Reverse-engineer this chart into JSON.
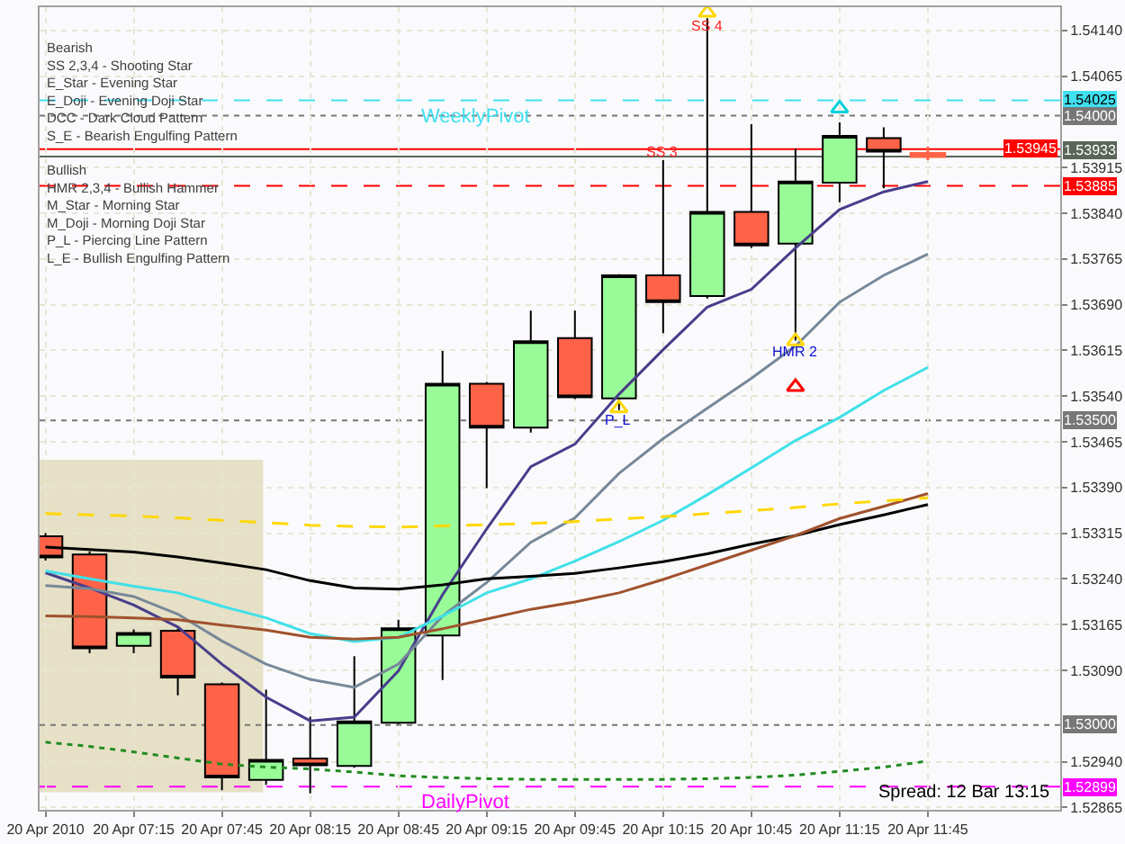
{
  "chart_data": {
    "type": "candlestick",
    "x": [
      "2010-04-20T06:45",
      "2010-04-20T07:00",
      "2010-04-20T07:15",
      "2010-04-20T07:30",
      "2010-04-20T07:45",
      "2010-04-20T08:00",
      "2010-04-20T08:15",
      "2010-04-20T08:30",
      "2010-04-20T08:45",
      "2010-04-20T09:00",
      "2010-04-20T09:15",
      "2010-04-20T09:30",
      "2010-04-20T09:45",
      "2010-04-20T10:00",
      "2010-04-20T10:15",
      "2010-04-20T10:30",
      "2010-04-20T10:45",
      "2010-04-20T11:00",
      "2010-04-20T11:15",
      "2010-04-20T11:30",
      "2010-04-20T11:45"
    ],
    "ohlc": [
      [
        1.5331,
        1.53315,
        1.5327,
        1.53275
      ],
      [
        1.5328,
        1.53285,
        1.53118,
        1.53126
      ],
      [
        1.5313,
        1.53157,
        1.53118,
        1.53151
      ],
      [
        1.53155,
        1.53158,
        1.53049,
        1.53078
      ],
      [
        1.53067,
        1.5307,
        1.52893,
        1.52914
      ],
      [
        1.5291,
        1.53058,
        1.52902,
        1.52943
      ],
      [
        1.52945,
        1.53014,
        1.52888,
        1.52934
      ],
      [
        1.52933,
        1.53113,
        1.5293,
        1.53006
      ],
      [
        1.53004,
        1.53173,
        1.53001,
        1.53159
      ],
      [
        1.53147,
        1.53614,
        1.53074,
        1.5356
      ],
      [
        1.5356,
        1.53563,
        1.53389,
        1.53488
      ],
      [
        1.53488,
        1.5368,
        1.5348,
        1.5363
      ],
      [
        1.53635,
        1.5368,
        1.53535,
        1.53538
      ],
      [
        1.53536,
        1.5374,
        1.53517,
        1.53738
      ],
      [
        1.53738,
        1.53927,
        1.53643,
        1.53694
      ],
      [
        1.53704,
        1.5416,
        1.537,
        1.53842
      ],
      [
        1.53842,
        1.53986,
        1.53783,
        1.53787
      ],
      [
        1.5379,
        1.53946,
        1.53631,
        1.53892
      ],
      [
        1.5389,
        1.53989,
        1.53858,
        1.53967
      ],
      [
        1.53963,
        1.53981,
        1.53881,
        1.53941
      ],
      [
        1.53938,
        1.53949,
        1.53927,
        1.53933
      ]
    ],
    "colors": [
      "#ff6347",
      "#ff6347",
      "#98fb98",
      "#ff6347",
      "#ff6347",
      "#98fb98",
      "#ff6347",
      "#98fb98",
      "#98fb98",
      "#98fb98",
      "#ff6347",
      "#98fb98",
      "#ff6347",
      "#98fb98",
      "#ff6347",
      "#98fb98",
      "#ff6347",
      "#98fb98",
      "#98fb98",
      "#ff6347",
      "#ff6347"
    ],
    "series": [
      {
        "type": "line",
        "color": "#483d8b",
        "values": [
          1.5325,
          1.53225,
          1.53197,
          1.53161,
          1.531,
          1.53046,
          1.53007,
          1.53013,
          1.53089,
          1.53214,
          1.53322,
          1.53424,
          1.53461,
          1.53543,
          1.53616,
          1.53686,
          1.53715,
          1.53783,
          1.53846,
          1.53875,
          1.53892
        ]
      },
      {
        "type": "line",
        "color": "#778899",
        "values": [
          1.53229,
          1.53224,
          1.53211,
          1.53182,
          1.53138,
          1.531,
          1.53075,
          1.53062,
          1.531,
          1.53179,
          1.53234,
          1.533,
          1.5334,
          1.53413,
          1.5347,
          1.5352,
          1.53569,
          1.53622,
          1.53694,
          1.53738,
          1.53773
        ]
      },
      {
        "type": "line",
        "color": "#40e0e8",
        "values": [
          1.53253,
          1.5324,
          1.53228,
          1.53217,
          1.53195,
          1.53176,
          1.5315,
          1.53137,
          1.53144,
          1.53179,
          1.53217,
          1.5324,
          1.53269,
          1.53301,
          1.53336,
          1.53378,
          1.53422,
          1.53467,
          1.53505,
          1.53549,
          1.53587
        ]
      },
      {
        "type": "line",
        "color": "#000000",
        "values": [
          1.53292,
          1.53288,
          1.53284,
          1.53276,
          1.53266,
          1.53255,
          1.53237,
          1.53225,
          1.53223,
          1.5323,
          1.5324,
          1.53244,
          1.53249,
          1.53258,
          1.53268,
          1.53281,
          1.53297,
          1.53311,
          1.53329,
          1.53345,
          1.53362
        ]
      },
      {
        "type": "line",
        "color": "#a0522d",
        "values": [
          1.53179,
          1.53178,
          1.53176,
          1.53173,
          1.53164,
          1.53156,
          1.53144,
          1.53141,
          1.53144,
          1.53158,
          1.53174,
          1.5319,
          1.53202,
          1.53217,
          1.53239,
          1.53263,
          1.53287,
          1.53311,
          1.53339,
          1.53359,
          1.5338
        ]
      },
      {
        "type": "line",
        "color": "#ffd700",
        "line_style": "dashed",
        "values": [
          1.53347,
          1.53345,
          1.53343,
          1.5334,
          1.53336,
          1.53332,
          1.53328,
          1.53326,
          1.53325,
          1.53327,
          1.53329,
          1.53331,
          1.53334,
          1.53338,
          1.53342,
          1.53347,
          1.53352,
          1.53357,
          1.53363,
          1.53368,
          1.53373
        ]
      },
      {
        "type": "line",
        "color": "#228b22",
        "line_style": "dotted",
        "values": [
          1.52972,
          1.52965,
          1.52956,
          1.52946,
          1.52936,
          1.52931,
          1.52928,
          1.52923,
          1.52917,
          1.52914,
          1.52912,
          1.52911,
          1.52911,
          1.52911,
          1.52911,
          1.52912,
          1.52914,
          1.52918,
          1.52924,
          1.52931,
          1.52941
        ]
      },
      {
        "type": "scatter",
        "color": "#ffd700",
        "marker": "triangle",
        "x": [
          "2010-04-20T10:30",
          "2010-04-20T10:00",
          "2010-04-20T11:00"
        ],
        "values": [
          1.54169,
          1.5352,
          1.5363
        ]
      },
      {
        "type": "scatter",
        "color": "#ff0000",
        "marker": "triangle",
        "x": [
          "2010-04-20T11:00"
        ],
        "values": [
          1.53555
        ]
      },
      {
        "type": "scatter",
        "color": "#00d0d8",
        "marker": "triangle",
        "x": [
          "2010-04-20T11:15"
        ],
        "values": [
          1.54012
        ]
      }
    ],
    "xlim": [
      "2010-04-20T06:43",
      "2010-04-20T12:30"
    ],
    "xticks": [
      {
        "value": "2010-04-20T06:45",
        "label": "20 Apr 2010"
      },
      {
        "value": "2010-04-20T07:15",
        "label": "20 Apr 07:15"
      },
      {
        "value": "2010-04-20T07:45",
        "label": "20 Apr 07:45"
      },
      {
        "value": "2010-04-20T08:15",
        "label": "20 Apr 08:15"
      },
      {
        "value": "2010-04-20T08:45",
        "label": "20 Apr 08:45"
      },
      {
        "value": "2010-04-20T09:15",
        "label": "20 Apr 09:15"
      },
      {
        "value": "2010-04-20T09:45",
        "label": "20 Apr 09:45"
      },
      {
        "value": "2010-04-20T10:15",
        "label": "20 Apr 10:15"
      },
      {
        "value": "2010-04-20T10:45",
        "label": "20 Apr 10:45"
      },
      {
        "value": "2010-04-20T11:15",
        "label": "20 Apr 11:15"
      },
      {
        "value": "2010-04-20T11:45",
        "label": "20 Apr 11:45"
      }
    ],
    "ylim": [
      1.52861,
      1.54178
    ],
    "yticks": [
      {
        "value": 1.5414,
        "label": "1.54140"
      },
      1.54065,
      1.53915,
      {
        "value": 1.5384,
        "label": "1.53840"
      },
      1.53765,
      {
        "value": 1.5369,
        "label": "1.53690"
      },
      1.53615,
      {
        "value": 1.5354,
        "label": "1.53540"
      },
      1.53465,
      {
        "value": 1.5339,
        "label": "1.53390"
      },
      1.53315,
      {
        "value": 1.5324,
        "label": "1.53240"
      },
      1.53165,
      {
        "value": 1.5309,
        "label": "1.53090"
      },
      {
        "value": 1.5294,
        "label": "1.52940"
      },
      1.52865
    ],
    "ref_lines": [
      {
        "axis": "y",
        "value": 1.54025,
        "label": "1.54025",
        "color": "#40e0f0",
        "line_style": "dashed"
      },
      {
        "axis": "y",
        "value": 1.54,
        "label": "1.54000",
        "color": "#777777",
        "line_style": "dotted"
      },
      {
        "axis": "y",
        "value": 1.53945,
        "label": "1.53945",
        "color": "#ff0000",
        "line_style": "solid"
      },
      {
        "axis": "y",
        "value": 1.53933,
        "label": "1.53933",
        "color": "#5a6658",
        "line_style": "solid"
      },
      {
        "axis": "y",
        "value": 1.53885,
        "label": "1.53885",
        "color": "#ff0000",
        "line_style": "dashed"
      },
      {
        "axis": "y",
        "value": 1.535,
        "label": "1.53500",
        "color": "#777777",
        "line_style": "dotted"
      },
      {
        "axis": "y",
        "value": 1.53,
        "label": "1.53000",
        "color": "#777777",
        "line_style": "dotted"
      },
      {
        "axis": "y",
        "value": 1.52899,
        "label": "1.52899",
        "color": "#ff00ff",
        "line_style": "dashed"
      }
    ],
    "bands": [
      {
        "axis": "x",
        "from": "2010-04-20T06:43",
        "to": "2010-04-20T07:59",
        "color": "#e6e0c6"
      }
    ],
    "annotations": [
      {
        "text": "SS 4",
        "x": "2010-04-20T10:30",
        "y": 1.54146
      },
      {
        "text": "SS 3",
        "x": "2010-04-20T10:15",
        "y": 1.53939
      },
      {
        "text": "P_L",
        "x": "2010-04-20T10:00",
        "y": 1.535
      },
      {
        "text": "HMR 2",
        "x": "2010-04-20T11:00",
        "y": 1.53613
      },
      {
        "text": "WeeklyPivot",
        "y": 1.54025
      },
      {
        "text": "DailyPivot",
        "y": 1.52899
      },
      "Bearish\nSS 2,3,4 - Shooting Star\nE_Star - Evening Star\nE_Doji - Evening Doji Star\nDCC - Dark Cloud Pattern\nS_E - Bearish Engulfing Pattern",
      "Bullish\nHMR 2,3,4 - Bullish Hammer\nM_Star - Morning Star\nM_Doji - Morning Doji Star\nP_L - Piercing Line Pattern\nL_E - Bullish Engulfing Pattern",
      "Spread: 12 Bar 13:15"
    ],
    "grid": true
  }
}
